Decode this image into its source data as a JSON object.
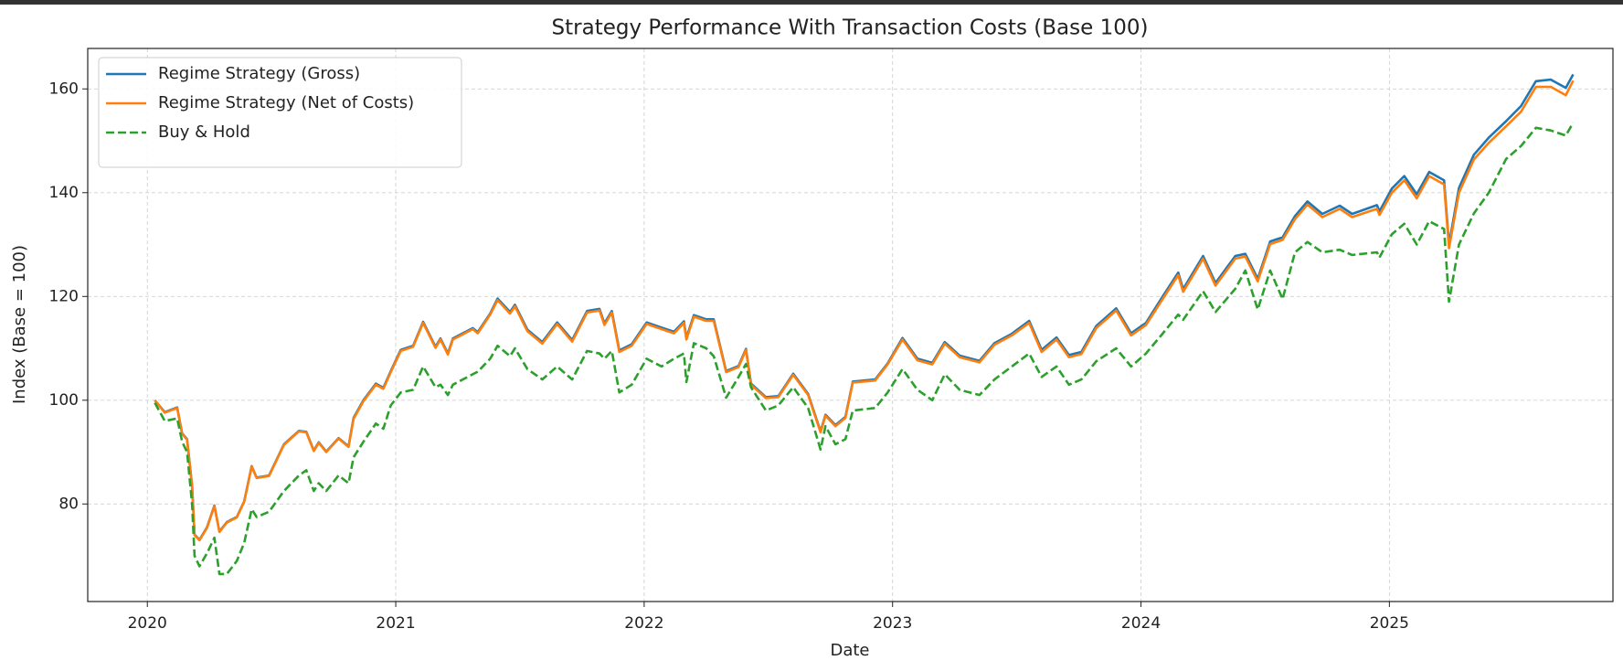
{
  "chart_data": {
    "type": "line",
    "title": "Strategy Performance With Transaction Costs (Base 100)",
    "xlabel": "Date",
    "ylabel": "Index (Base = 100)",
    "xlim": [
      2019.76,
      2025.9
    ],
    "ylim": [
      61.2,
      167.8
    ],
    "xticks": [
      2020,
      2021,
      2022,
      2023,
      2024,
      2025
    ],
    "yticks": [
      80,
      100,
      120,
      140,
      160
    ],
    "grid": true,
    "legend": "upper left",
    "x": [
      2020.03,
      2020.07,
      2020.12,
      2020.14,
      2020.16,
      2020.18,
      2020.19,
      2020.21,
      2020.24,
      2020.27,
      2020.29,
      2020.32,
      2020.36,
      2020.39,
      2020.42,
      2020.44,
      2020.49,
      2020.55,
      2020.61,
      2020.64,
      2020.67,
      2020.69,
      2020.72,
      2020.77,
      2020.81,
      2020.83,
      2020.87,
      2020.92,
      2020.95,
      2020.98,
      2021.02,
      2021.07,
      2021.11,
      2021.16,
      2021.18,
      2021.21,
      2021.23,
      2021.31,
      2021.33,
      2021.38,
      2021.41,
      2021.46,
      2021.48,
      2021.53,
      2021.59,
      2021.65,
      2021.71,
      2021.77,
      2021.82,
      2021.84,
      2021.87,
      2021.9,
      2021.95,
      2022.01,
      2022.07,
      2022.12,
      2022.16,
      2022.17,
      2022.2,
      2022.25,
      2022.28,
      2022.33,
      2022.38,
      2022.41,
      2022.43,
      2022.49,
      2022.54,
      2022.6,
      2022.66,
      2022.71,
      2022.73,
      2022.77,
      2022.81,
      2022.84,
      2022.93,
      2022.98,
      2023.04,
      2023.1,
      2023.16,
      2023.21,
      2023.27,
      2023.35,
      2023.41,
      2023.48,
      2023.55,
      2023.6,
      2023.66,
      2023.71,
      2023.76,
      2023.82,
      2023.9,
      2023.96,
      2024.02,
      2024.09,
      2024.15,
      2024.17,
      2024.25,
      2024.3,
      2024.38,
      2024.42,
      2024.47,
      2024.52,
      2024.57,
      2024.62,
      2024.67,
      2024.73,
      2024.8,
      2024.85,
      2024.95,
      2024.96,
      2025.01,
      2025.06,
      2025.11,
      2025.16,
      2025.22,
      2025.24,
      2025.28,
      2025.34,
      2025.4,
      2025.47,
      2025.53,
      2025.59,
      2025.65,
      2025.71,
      2025.74
    ],
    "series": [
      {
        "name": "Regime Strategy (Gross)",
        "color": "#1f77b4",
        "linestyle": "solid",
        "values": [
          100.0,
          97.7,
          98.6,
          93.6,
          92.5,
          83.5,
          74.1,
          73.1,
          75.5,
          79.7,
          74.7,
          76.5,
          77.5,
          80.5,
          87.3,
          85.1,
          85.5,
          91.5,
          94.1,
          93.9,
          90.3,
          91.9,
          90.1,
          92.7,
          91.1,
          96.6,
          100.0,
          103.2,
          102.4,
          105.6,
          109.7,
          110.5,
          115.1,
          110.3,
          111.9,
          109.0,
          111.9,
          113.9,
          113.1,
          116.7,
          119.6,
          117.0,
          118.4,
          113.6,
          111.2,
          115.0,
          111.6,
          117.2,
          117.6,
          114.8,
          117.2,
          109.6,
          110.8,
          115.0,
          114.0,
          113.2,
          115.2,
          112.0,
          116.4,
          115.6,
          115.6,
          105.6,
          106.6,
          109.9,
          103.2,
          100.6,
          100.8,
          105.1,
          101.2,
          94.0,
          97.2,
          95.2,
          96.8,
          103.6,
          104.0,
          107.1,
          112.0,
          108.0,
          107.2,
          111.2,
          108.6,
          107.6,
          111.0,
          112.8,
          115.3,
          109.7,
          112.1,
          108.7,
          109.3,
          114.3,
          117.7,
          112.9,
          114.9,
          120.2,
          124.6,
          121.4,
          127.8,
          122.6,
          127.8,
          128.2,
          123.4,
          130.6,
          131.4,
          135.5,
          138.3,
          135.9,
          137.5,
          135.9,
          137.6,
          136.4,
          140.8,
          143.2,
          139.7,
          144.0,
          142.4,
          130.0,
          140.9,
          147.3,
          150.6,
          153.8,
          156.7,
          161.5,
          161.8,
          160.2,
          162.8
        ]
      },
      {
        "name": "Regime Strategy (Net of Costs)",
        "color": "#ff7f0e",
        "linestyle": "solid",
        "values": [
          100.0,
          97.6,
          98.5,
          93.5,
          92.4,
          83.4,
          74.0,
          73.0,
          75.4,
          79.6,
          74.6,
          76.4,
          77.4,
          80.4,
          87.2,
          85.0,
          85.4,
          91.4,
          94.0,
          93.8,
          90.2,
          91.8,
          90.0,
          92.6,
          91.0,
          96.4,
          99.8,
          103.0,
          102.2,
          105.4,
          109.5,
          110.3,
          114.9,
          110.1,
          111.7,
          108.8,
          111.7,
          113.7,
          112.9,
          116.5,
          119.3,
          116.7,
          118.1,
          113.3,
          110.9,
          114.7,
          111.3,
          116.9,
          117.3,
          114.5,
          116.9,
          109.3,
          110.5,
          114.7,
          113.7,
          112.9,
          114.9,
          111.7,
          116.1,
          115.3,
          115.3,
          105.4,
          106.4,
          109.7,
          103.0,
          100.4,
          100.6,
          104.9,
          101.0,
          93.8,
          97.0,
          95.0,
          96.6,
          103.4,
          103.8,
          106.9,
          111.7,
          107.7,
          106.9,
          110.9,
          108.3,
          107.3,
          110.7,
          112.5,
          114.9,
          109.3,
          111.7,
          108.3,
          108.9,
          113.9,
          117.3,
          112.5,
          114.5,
          119.7,
          124.1,
          120.9,
          127.3,
          122.1,
          127.3,
          127.7,
          122.9,
          130.1,
          130.9,
          134.9,
          137.7,
          135.3,
          136.9,
          135.3,
          136.9,
          135.7,
          140.0,
          142.4,
          138.9,
          143.2,
          141.6,
          129.3,
          140.0,
          146.4,
          149.6,
          152.8,
          155.6,
          160.4,
          160.4,
          158.8,
          161.6
        ]
      },
      {
        "name": "Buy & Hold",
        "color": "#2ca02c",
        "linestyle": "dashed",
        "values": [
          99.5,
          96.0,
          96.5,
          92.0,
          90.0,
          80.0,
          70.0,
          68.0,
          70.5,
          73.5,
          66.5,
          66.5,
          69,
          72.5,
          79,
          77.5,
          78.5,
          82.5,
          85.5,
          86.5,
          82.5,
          84,
          82.5,
          85.5,
          84,
          89,
          92,
          95.5,
          94.5,
          99,
          101.5,
          102,
          106.5,
          102.5,
          103,
          101,
          103,
          105,
          105.5,
          108,
          110.5,
          108.5,
          110,
          106,
          104,
          106.5,
          104,
          109.5,
          109,
          108,
          109.5,
          101.5,
          103,
          108,
          106.5,
          108,
          109,
          103.5,
          111,
          110,
          108.5,
          100.5,
          104.5,
          107,
          102.5,
          98,
          99,
          102.5,
          98.5,
          90.5,
          95,
          91.5,
          92.5,
          98,
          98.5,
          101.5,
          106,
          102,
          100,
          105,
          102,
          101,
          104,
          106.5,
          109,
          104.5,
          106.5,
          103,
          104,
          107.5,
          110,
          106.5,
          109,
          113,
          116.5,
          115.5,
          121,
          117,
          121.5,
          125,
          117.5,
          125,
          119.5,
          128.5,
          130.5,
          128.5,
          129,
          128,
          128.5,
          127.5,
          132,
          134,
          130,
          134.5,
          133,
          119,
          130,
          136,
          140,
          146.5,
          149,
          152.5,
          152,
          151,
          153.5
        ]
      }
    ]
  }
}
